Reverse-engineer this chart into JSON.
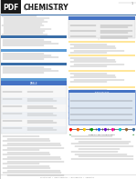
{
  "page_bg": "#ffffff",
  "pdf_badge_bg": "#1a1a1a",
  "pdf_text": "PDF",
  "title": "CHEMISTRY",
  "title_color": "#1a1a1a",
  "subtitle": "Lipid Chemistry: Biochemistry",
  "subtitle_color": "#666666",
  "top_bar_color": "#3a6ea8",
  "section_bar_left_color": "#3a6ea8",
  "section_bar_mid_color": "#5b9bd5",
  "section_bar_yellow": "#ffe699",
  "section_bar_blue_light": "#bdd7ee",
  "table_header_color": "#4472c4",
  "table_header_text": "#ffffff",
  "table_row_alt": "#dce6f1",
  "table_row_highlight": "#ffe699",
  "grid_line_color": "#cccccc",
  "text_dark": "#333333",
  "text_mid": "#555555",
  "text_light": "#888888",
  "footer_color": "#888888",
  "border_color": "#bbbbbb",
  "timeline_colors": [
    "#ff0000",
    "#ff6600",
    "#ffcc00",
    "#009900",
    "#0066ff",
    "#6600cc",
    "#ff0099",
    "#00cccc",
    "#996633",
    "#336699"
  ],
  "right_table_bg": "#dce6f1",
  "right_table_border": "#4472c4"
}
